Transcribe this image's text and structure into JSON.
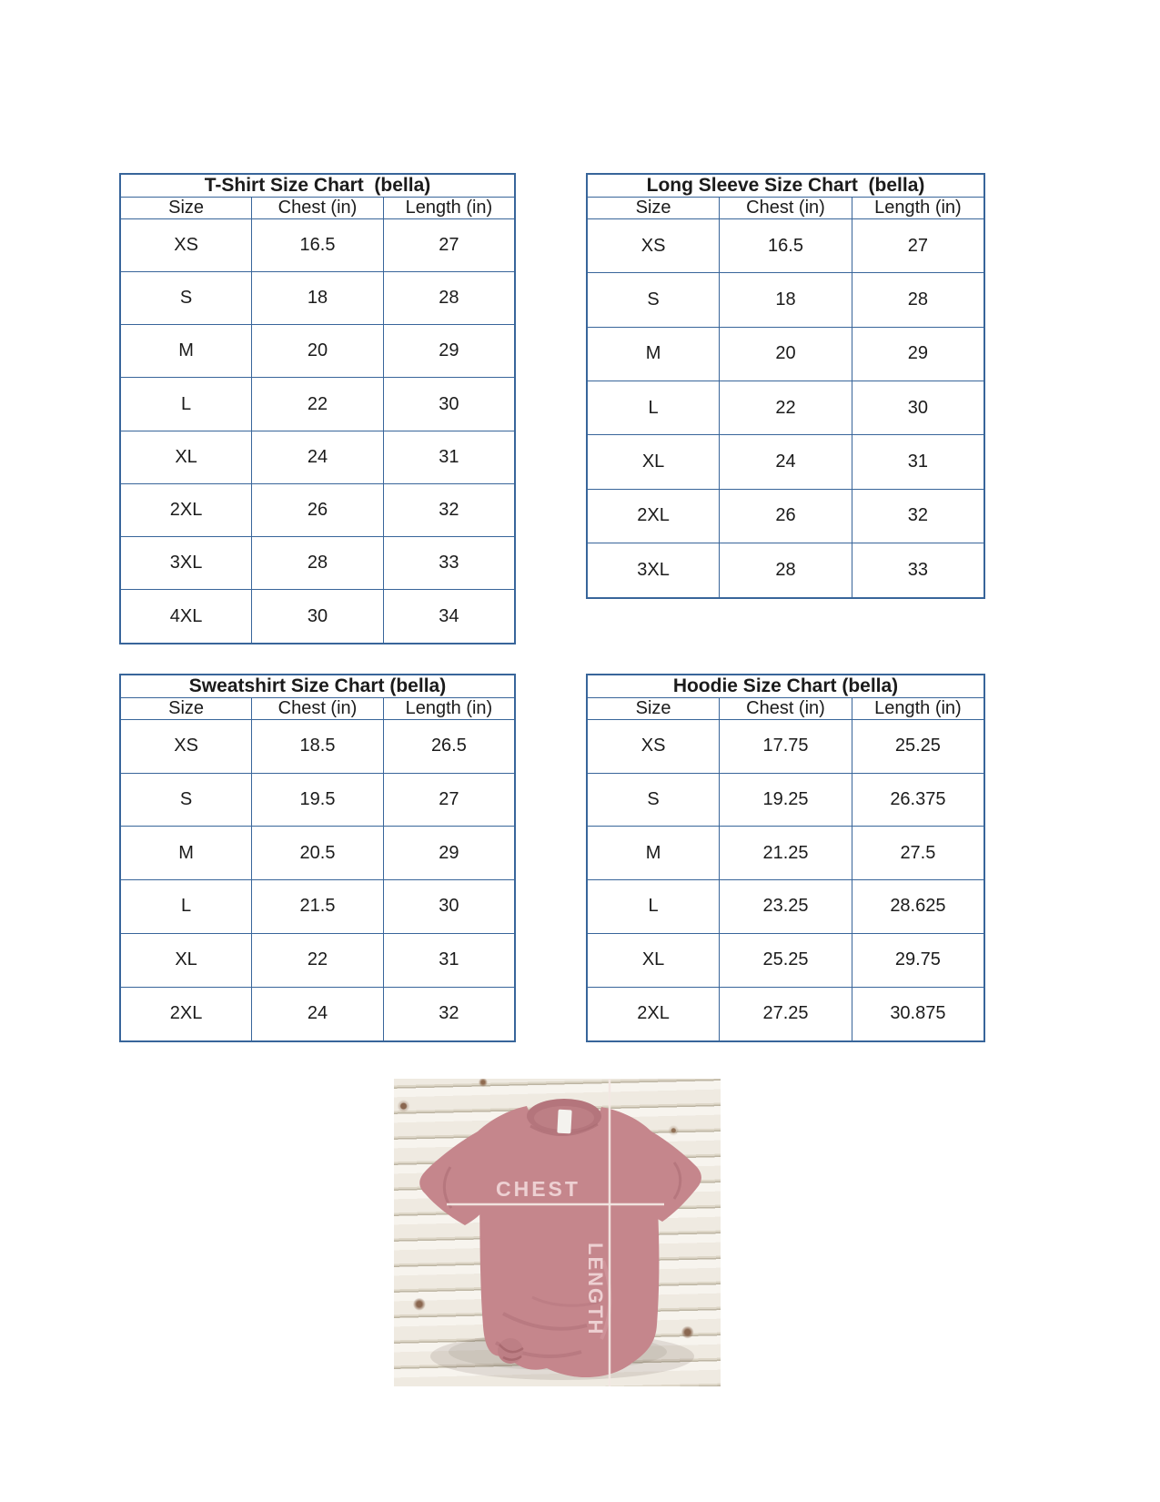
{
  "colors": {
    "table_border": "#38659a",
    "text": "#1b1b1b",
    "shirt": "#c5868c",
    "shirt_dark": "#b4757c",
    "measure_line": "#f3e7e3",
    "measure_text": "#edd0d2",
    "wood_base": "#f4f1ea"
  },
  "tables": [
    {
      "id": "tshirt",
      "title": "T-Shirt Size Chart  (bella)",
      "headers": [
        "Size",
        "Chest (in)",
        "Length (in)"
      ],
      "rows": [
        [
          "XS",
          "16.5",
          "27"
        ],
        [
          "S",
          "18",
          "28"
        ],
        [
          "M",
          "20",
          "29"
        ],
        [
          "L",
          "22",
          "30"
        ],
        [
          "XL",
          "24",
          "31"
        ],
        [
          "2XL",
          "26",
          "32"
        ],
        [
          "3XL",
          "28",
          "33"
        ],
        [
          "4XL",
          "30",
          "34"
        ]
      ]
    },
    {
      "id": "longsleeve",
      "title": "Long Sleeve Size Chart  (bella)",
      "headers": [
        "Size",
        "Chest (in)",
        "Length (in)"
      ],
      "rows": [
        [
          "XS",
          "16.5",
          "27"
        ],
        [
          "S",
          "18",
          "28"
        ],
        [
          "M",
          "20",
          "29"
        ],
        [
          "L",
          "22",
          "30"
        ],
        [
          "XL",
          "24",
          "31"
        ],
        [
          "2XL",
          "26",
          "32"
        ],
        [
          "3XL",
          "28",
          "33"
        ]
      ]
    },
    {
      "id": "sweatshirt",
      "title": "Sweatshirt Size Chart (bella)",
      "headers": [
        "Size",
        "Chest (in)",
        "Length (in)"
      ],
      "rows": [
        [
          "XS",
          "18.5",
          "26.5"
        ],
        [
          "S",
          "19.5",
          "27"
        ],
        [
          "M",
          "20.5",
          "29"
        ],
        [
          "L",
          "21.5",
          "30"
        ],
        [
          "XL",
          "22",
          "31"
        ],
        [
          "2XL",
          "24",
          "32"
        ]
      ]
    },
    {
      "id": "hoodie",
      "title": "Hoodie Size Chart (bella)",
      "headers": [
        "Size",
        "Chest (in)",
        "Length (in)"
      ],
      "rows": [
        [
          "XS",
          "17.75",
          "25.25"
        ],
        [
          "S",
          "19.25",
          "26.375"
        ],
        [
          "M",
          "21.25",
          "27.5"
        ],
        [
          "L",
          "23.25",
          "28.625"
        ],
        [
          "XL",
          "25.25",
          "29.75"
        ],
        [
          "2XL",
          "27.25",
          "30.875"
        ]
      ]
    }
  ],
  "photo": {
    "chest_label": "CHEST",
    "length_label": "LENGTH"
  }
}
